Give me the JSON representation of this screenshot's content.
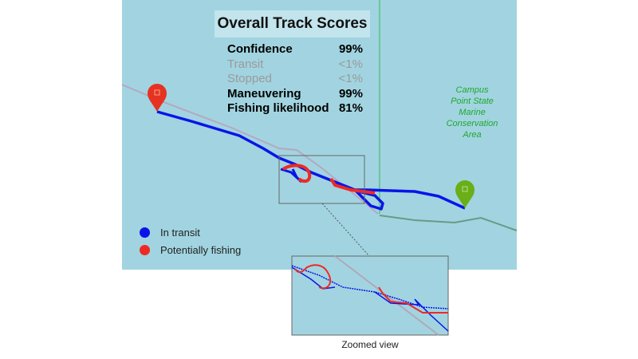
{
  "scores": {
    "title": "Overall Track Scores",
    "rows": [
      {
        "label": "Confidence",
        "value": "99%",
        "active": true
      },
      {
        "label": "Transit",
        "value": "<1%",
        "active": false
      },
      {
        "label": "Stopped",
        "value": "<1%",
        "active": false
      },
      {
        "label": "Maneuvering",
        "value": "99%",
        "active": true
      },
      {
        "label": "Fishing likelihood",
        "value": "81%",
        "active": true
      }
    ]
  },
  "map": {
    "area_label": [
      "Campus",
      "Point State",
      "Marine",
      "Conservation",
      "Area"
    ],
    "start_marker": "map-pin-icon",
    "end_marker": "map-pin-icon"
  },
  "legend": [
    {
      "label": "In transit",
      "color": "#0a14e8"
    },
    {
      "label": "Potentially fishing",
      "color": "#ee2a24"
    }
  ],
  "inset": {
    "caption": "Zoomed view"
  },
  "colors": {
    "water": "#a1d4e0",
    "transit": "#0a14e8",
    "fishing": "#ee2a24",
    "mpa": "#1fa82c"
  }
}
